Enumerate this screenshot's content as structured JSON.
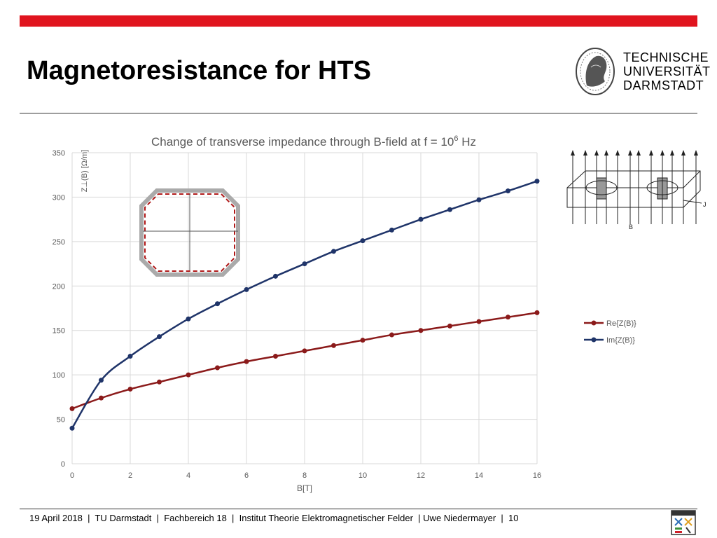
{
  "slide": {
    "title": "Magnetoresistance for HTS",
    "logo_lines": [
      "TECHNISCHE",
      "UNIVERSITÄT",
      "DARMSTADT"
    ],
    "footer": "19 April 2018  |  TU Darmstadt  |  Fachbereich 18  |  Institut Theorie Elektromagnetischer Felder  | Uwe Niedermayer  |  10",
    "colors": {
      "accent_bar": "#e0141e"
    }
  },
  "chart_data": {
    "type": "line",
    "title": "Change of transverse impedance through B-field at f = 10",
    "title_superscript": "6",
    "title_suffix": " Hz",
    "xlabel": "B[T]",
    "ylabel": "Z⊥(B) [Ω/m]",
    "xlim": [
      0,
      16
    ],
    "ylim": [
      0,
      350
    ],
    "x_ticks": [
      0,
      2,
      4,
      6,
      8,
      10,
      12,
      14,
      16
    ],
    "y_ticks": [
      0,
      50,
      100,
      150,
      200,
      250,
      300,
      350
    ],
    "grid": true,
    "legend_position": "right",
    "x": [
      0,
      1,
      2,
      3,
      4,
      5,
      6,
      7,
      8,
      9,
      10,
      11,
      12,
      13,
      14,
      15,
      16
    ],
    "series": [
      {
        "name": "Re{Z(B)}",
        "color": "#8b1a1a",
        "values": [
          62,
          74,
          84,
          92,
          100,
          108,
          115,
          121,
          127,
          133,
          139,
          145,
          150,
          155,
          160,
          165,
          170
        ]
      },
      {
        "name": "Im{Z(B)}",
        "color": "#1f3469",
        "values": [
          40,
          94,
          121,
          143,
          163,
          180,
          196,
          211,
          225,
          239,
          251,
          263,
          275,
          286,
          297,
          307,
          318
        ]
      }
    ]
  },
  "insets": {
    "field_diagram_label_j": "J",
    "field_diagram_label_b": "B"
  }
}
